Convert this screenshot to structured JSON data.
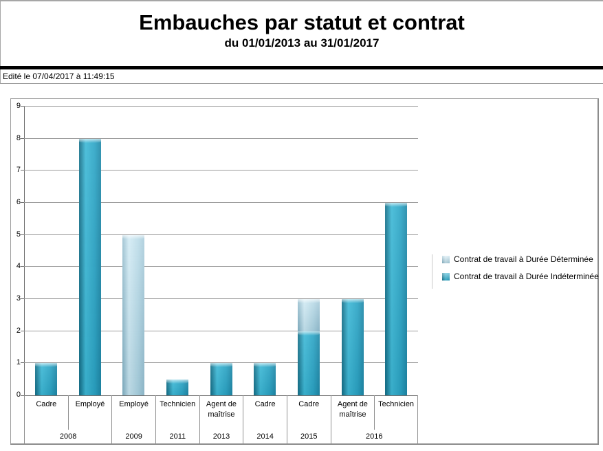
{
  "header": {
    "edited_label": "Edité le 07/04/2017 à 11:49:15"
  },
  "chart_data": {
    "type": "bar",
    "stacked": true,
    "title": "Embauches par statut et contrat",
    "subtitle": "du 01/01/2013 au 31/01/2017",
    "xlabel": "",
    "ylabel": "",
    "ylim": [
      0,
      9
    ],
    "ytick_step": 1,
    "grid": true,
    "legend_position": "right-middle",
    "series": [
      {
        "name": "Contrat de travail à Durée Déterminée",
        "key": "cdd"
      },
      {
        "name": "Contrat de travail à Durée Indéterminée",
        "key": "cdi"
      }
    ],
    "categories": [
      {
        "label": "Cadre",
        "year": "2008",
        "cdd": 0,
        "cdi": 1
      },
      {
        "label": "Employé",
        "year": "2008",
        "cdd": 0,
        "cdi": 8
      },
      {
        "label": "Employé",
        "year": "2009",
        "cdd": 5,
        "cdi": 0
      },
      {
        "label": "Technicien",
        "year": "2011",
        "cdd": 0,
        "cdi": 0.5
      },
      {
        "label": "Agent de maîtrise",
        "year": "2013",
        "cdd": 0,
        "cdi": 1
      },
      {
        "label": "Cadre",
        "year": "2014",
        "cdd": 0,
        "cdi": 1
      },
      {
        "label": "Cadre",
        "year": "2015",
        "cdd": 1,
        "cdi": 2
      },
      {
        "label": "Agent de maîtrise",
        "year": "2016",
        "cdd": 0,
        "cdi": 3
      },
      {
        "label": "Technicien",
        "year": "2016",
        "cdd": 0,
        "cdi": 6
      }
    ],
    "year_groups": [
      {
        "year": "2008",
        "span": 2
      },
      {
        "year": "2009",
        "span": 1
      },
      {
        "year": "2011",
        "span": 1
      },
      {
        "year": "2013",
        "span": 1
      },
      {
        "year": "2014",
        "span": 1
      },
      {
        "year": "2015",
        "span": 1
      },
      {
        "year": "2016",
        "span": 2
      }
    ]
  },
  "colors": {
    "cdi_main": "#2aa3c4",
    "cdi_light": "#3cb8d6",
    "cdi_dark": "#1d87a7",
    "cdi_edge": "#17758f",
    "cdd_main": "#a9d2e2",
    "cdd_light": "#c6e5f1",
    "cdd_dark": "#93bed1",
    "cdd_edge": "#88b6c9",
    "grid": "#9a9a9a",
    "axis": "#6e6e6e",
    "frame": "#9a9a9a",
    "divider": "#000000"
  }
}
